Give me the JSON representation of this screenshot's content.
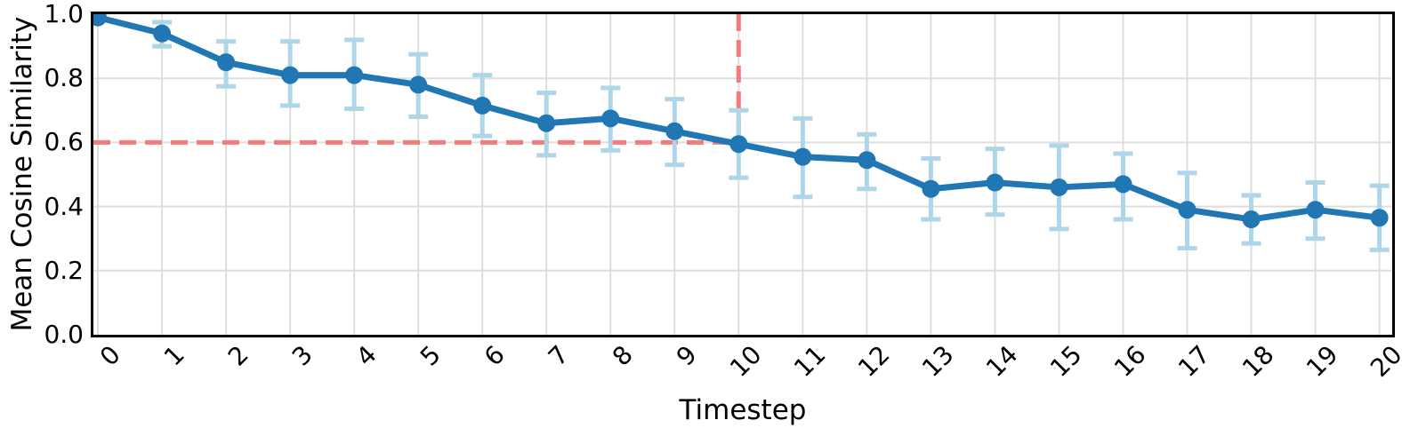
{
  "chart_data": {
    "type": "line",
    "title": "",
    "xlabel": "Timestep",
    "ylabel": "Mean Cosine Similarity",
    "x": [
      0,
      1,
      2,
      3,
      4,
      5,
      6,
      7,
      8,
      9,
      10,
      11,
      12,
      13,
      14,
      15,
      16,
      17,
      18,
      19,
      20
    ],
    "y": [
      0.99,
      0.94,
      0.85,
      0.81,
      0.81,
      0.78,
      0.715,
      0.66,
      0.675,
      0.635,
      0.595,
      0.555,
      0.545,
      0.455,
      0.475,
      0.46,
      0.47,
      0.39,
      0.36,
      0.39,
      0.365
    ],
    "yerr_low": [
      null,
      0.9,
      0.775,
      0.715,
      0.705,
      0.68,
      0.62,
      0.56,
      0.575,
      0.53,
      0.49,
      0.43,
      0.455,
      0.36,
      0.375,
      0.33,
      0.36,
      0.27,
      0.285,
      0.3,
      0.265
    ],
    "yerr_high": [
      null,
      0.975,
      0.915,
      0.915,
      0.92,
      0.875,
      0.81,
      0.755,
      0.77,
      0.735,
      0.7,
      0.675,
      0.625,
      0.55,
      0.58,
      0.59,
      0.565,
      0.505,
      0.435,
      0.475,
      0.465
    ],
    "xlim": [
      -0.07,
      20.2
    ],
    "ylim": [
      0.0,
      1.0
    ],
    "xticks": [
      0,
      1,
      2,
      3,
      4,
      5,
      6,
      7,
      8,
      9,
      10,
      11,
      12,
      13,
      14,
      15,
      16,
      17,
      18,
      19,
      20
    ],
    "xtick_labels": [
      "0",
      "1",
      "2",
      "3",
      "4",
      "5",
      "6",
      "7",
      "8",
      "9",
      "10",
      "11",
      "12",
      "13",
      "14",
      "15",
      "16",
      "17",
      "18",
      "19",
      "20"
    ],
    "yticks": [
      0.0,
      0.2,
      0.4,
      0.6,
      0.8,
      1.0
    ],
    "ytick_labels": [
      "0.0",
      "0.2",
      "0.4",
      "0.6",
      "0.8",
      "1.0"
    ],
    "grid": true,
    "legend": "none",
    "threshold_lines": {
      "horizontal": {
        "y": 0.6,
        "x_from": "left-edge",
        "x_to": 10,
        "style": "dashed"
      },
      "vertical": {
        "x": 10,
        "y_from": 0.6,
        "y_to": 1.0,
        "style": "dashed"
      }
    },
    "colors": {
      "series_line": "#2077b4",
      "marker": "#2077b4",
      "error_bar": "#aed6e8",
      "threshold": "#f07c7c",
      "grid": "#dedede",
      "spine": "#000000",
      "background": "#ffffff"
    }
  }
}
